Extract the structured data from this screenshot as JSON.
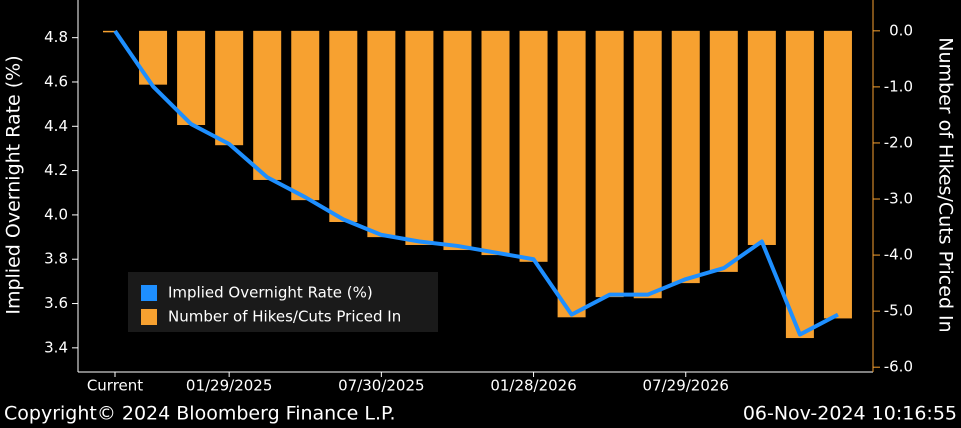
{
  "chart_data": {
    "type": "bar_line",
    "categories": [
      "Current",
      null,
      null,
      "01/29/2025",
      null,
      null,
      null,
      "07/30/2025",
      null,
      null,
      null,
      "01/28/2026",
      null,
      null,
      null,
      "07/29/2026",
      null,
      null,
      null,
      null
    ],
    "series": [
      {
        "name": "Implied Overnight Rate (%)",
        "color": "#1e8fff",
        "type": "line",
        "values": [
          4.83,
          4.58,
          4.41,
          4.32,
          4.17,
          4.08,
          3.98,
          3.91,
          3.88,
          3.86,
          3.83,
          3.8,
          3.55,
          3.64,
          3.64,
          3.71,
          3.76,
          3.88,
          3.46,
          3.55
        ]
      },
      {
        "name": "Number of Hikes/Cuts Priced In",
        "color": "#f7a130",
        "type": "bar",
        "axis": "y2",
        "values": [
          0,
          -0.96,
          -1.68,
          -2.04,
          -2.66,
          -3.02,
          -3.41,
          -3.68,
          -3.82,
          -3.91,
          -4.0,
          -4.12,
          -5.11,
          -4.75,
          -4.77,
          -4.5,
          -4.3,
          -3.82,
          -5.48,
          -5.13
        ]
      }
    ],
    "ylabel": "Implied Overnight Rate (%)",
    "y2label": "Number of Hikes/Cuts Priced In",
    "ylim": [
      3.3,
      4.97
    ],
    "yticks": [
      3.4,
      3.6,
      3.8,
      {
        "value": 4.0,
        "label": "4.0"
      },
      4.2,
      4.4,
      4.6,
      4.8
    ],
    "y2lim": [
      -6.05,
      0.55
    ],
    "y2ticks": [
      {
        "value": 0,
        "label": "0.0"
      },
      {
        "value": -1,
        "label": "-1.0"
      },
      {
        "value": -2,
        "label": "-2.0"
      },
      {
        "value": -3,
        "label": "-3.0"
      },
      {
        "value": -4,
        "label": "-4.0"
      },
      {
        "value": -5,
        "label": "-5.0"
      },
      {
        "value": -6,
        "label": "-6.0"
      }
    ],
    "footer_left": "Copyright© 2024 Bloomberg Finance L.P.",
    "footer_right": "06-Nov-2024 10:16:55"
  }
}
